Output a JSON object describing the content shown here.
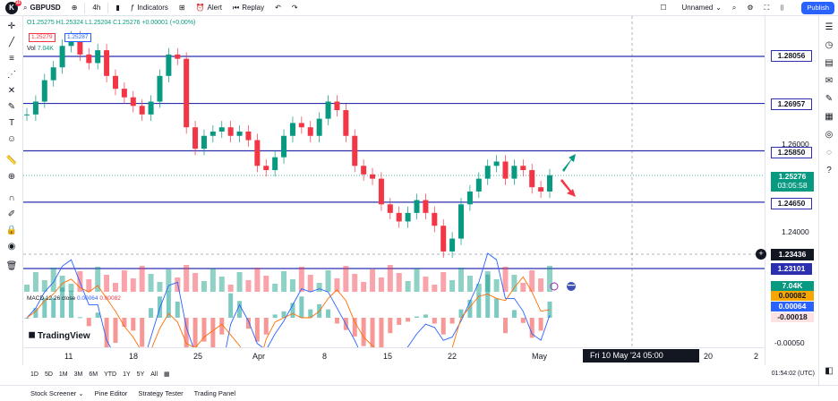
{
  "header": {
    "logo_text": "K",
    "logo_badge": "11",
    "symbol": "GBPUSD",
    "interval": "4h",
    "indicators_label": "Indicators",
    "alert_label": "Alert",
    "replay_label": "Replay",
    "layout_name": "Unnamed",
    "publish_label": "Publish"
  },
  "legend": {
    "ohlc": "O1.25275 H1.25324 L1.25204 C1.25276 +0.00001 (+0.00%)",
    "bid": "1.25279",
    "ask": "1.25287",
    "vol_label": "Vol",
    "vol_value": "7.04K",
    "macd_label": "MACD 12 26 close",
    "macd_v1": "0.00064",
    "macd_v2": "0.00082"
  },
  "price_axis": {
    "ticks": [
      "1.26000",
      "1.24000",
      "-0.00050"
    ],
    "levels": [
      "1.28056",
      "1.26957",
      "1.25850",
      "1.24650",
      "1.23101"
    ],
    "current_price": "1.25276",
    "countdown": "03:05:58",
    "crosshair_price": "1.23436",
    "vol_badge": "7.04K",
    "macd_badges": [
      "0.00082",
      "0.00064",
      "-0.00018"
    ]
  },
  "time_axis": {
    "labels": [
      "11",
      "18",
      "25",
      "Apr",
      "8",
      "15",
      "22",
      "May",
      "20",
      "2"
    ],
    "crosshair_time": "Fri 10 May '24   05:00"
  },
  "watermark": "TradingView",
  "ranges": [
    "1D",
    "5D",
    "1M",
    "3M",
    "6M",
    "YTD",
    "1Y",
    "5Y",
    "All"
  ],
  "clock": "01:54:02 (UTC)",
  "bottom_tabs": [
    "Stock Screener",
    "Pine Editor",
    "Strategy Tester",
    "Trading Panel"
  ],
  "colors": {
    "up": "#089981",
    "down": "#f23645",
    "level": "#2a2eaf",
    "accent": "#2962ff"
  },
  "chart_data": {
    "type": "candlestick",
    "symbol": "GBPUSD",
    "interval": "4h",
    "horizontal_levels": [
      1.28056,
      1.26957,
      1.2585,
      1.2465,
      1.23101
    ],
    "price_path": [
      1.267,
      1.27,
      1.275,
      1.278,
      1.283,
      1.285,
      1.281,
      1.279,
      1.282,
      1.276,
      1.273,
      1.271,
      1.269,
      1.267,
      1.27,
      1.276,
      1.281,
      1.28,
      1.264,
      1.259,
      1.262,
      1.263,
      1.264,
      1.262,
      1.263,
      1.261,
      1.255,
      1.254,
      1.257,
      1.262,
      1.265,
      1.264,
      1.262,
      1.266,
      1.27,
      1.268,
      1.262,
      1.255,
      1.253,
      1.252,
      1.246,
      1.244,
      1.242,
      1.244,
      1.247,
      1.244,
      1.241,
      1.235,
      1.238,
      1.246,
      1.249,
      1.252,
      1.255,
      1.256,
      1.252,
      1.255,
      1.254,
      1.25,
      1.249,
      1.2528
    ]
  }
}
